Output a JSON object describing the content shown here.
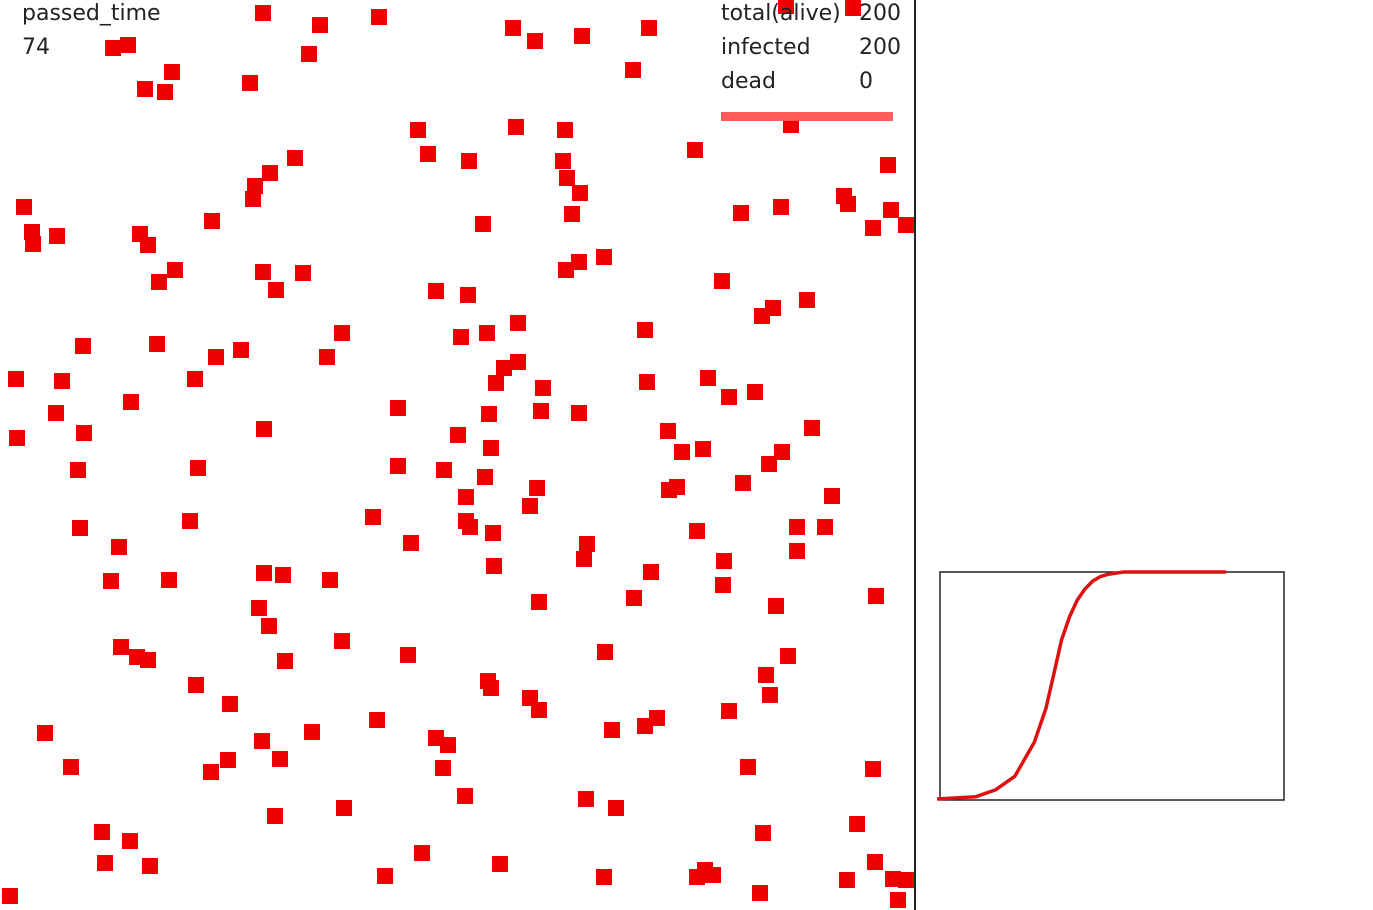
{
  "hud": {
    "passed_time_label": "passed_time",
    "passed_time_value": "74",
    "total_label": "total(alive)",
    "total_value": "200",
    "infected_label": "infected",
    "infected_value": "200",
    "dead_label": "dead",
    "dead_value": "0"
  },
  "infected_fraction": 1.0,
  "colors": {
    "agent_infected": "#ee0000",
    "bar": "#ff5c5c",
    "curve": "#dd1111"
  },
  "chart_data": {
    "type": "line",
    "title": "",
    "xlabel": "",
    "ylabel": "",
    "x": [
      0,
      5,
      10,
      15,
      20,
      25,
      28,
      30,
      32,
      34,
      36,
      38,
      40,
      42,
      44,
      46,
      48,
      50,
      55,
      60,
      74
    ],
    "series": [
      {
        "values": [
          0,
          1,
          2,
          8,
          20,
          50,
          80,
          110,
          140,
          160,
          175,
          185,
          192,
          196,
          198,
          199,
          200,
          200,
          200,
          200,
          200
        ]
      }
    ],
    "xlim": [
      0,
      74
    ],
    "ylim": [
      0,
      200
    ],
    "grid": false,
    "legend": "none"
  }
}
